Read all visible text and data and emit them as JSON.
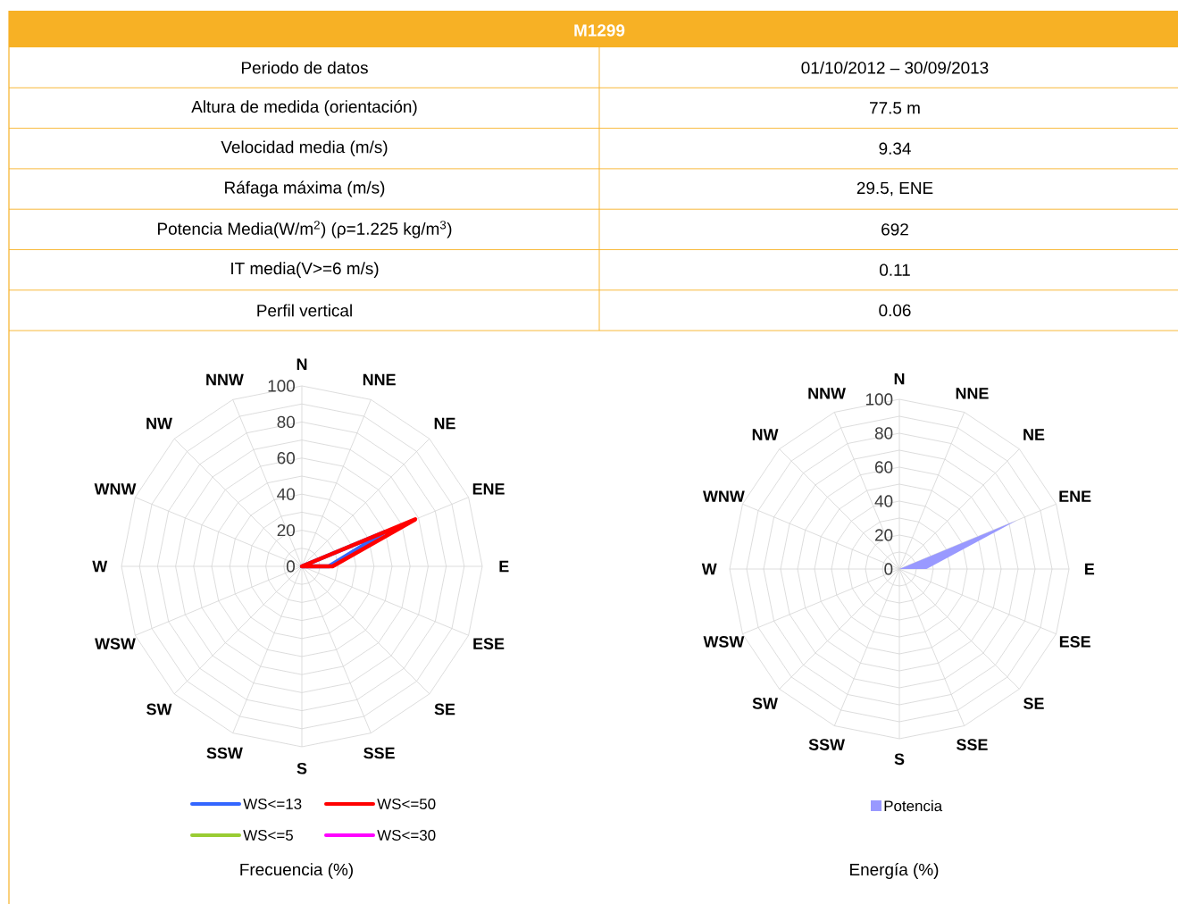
{
  "chart_data": [
    {
      "type": "other",
      "title": "M1299",
      "annotations": [
        "Periodo de datos",
        "01/10/2012 – 30/09/2013",
        "Altura de medida (orientación)",
        "77.5 m",
        "Velocidad media (m/s)",
        "9.34",
        "Ráfaga máxima (m/s)",
        "29.5, ENE",
        "Potencia Media(W/m$^{2}$) (ρ=1.225 kg/m$^{3}$)",
        "692",
        "IT media(V>=6 m/s)",
        "0.11",
        "Perfil vertical",
        "0.06"
      ]
    },
    {
      "type": "radar",
      "title": "Frecuencia (%)",
      "categories": [
        "N",
        "NNE",
        "NE",
        "ENE",
        "E",
        "ESE",
        "SE",
        "SSE",
        "S",
        "SSW",
        "SW",
        "WSW",
        "W",
        "WNW",
        "NW",
        "NNW"
      ],
      "series": [
        {
          "name": "WS<=13",
          "color": "#3366ff",
          "values": [
            0,
            0,
            0,
            50,
            15,
            0,
            0,
            0,
            0,
            0,
            0,
            0,
            0,
            0,
            0,
            0
          ]
        },
        {
          "name": "WS<=50",
          "color": "#ff0000",
          "values": [
            0,
            0,
            0,
            68,
            17,
            0,
            0,
            0,
            0,
            0,
            0,
            0,
            0,
            0,
            0,
            0
          ]
        },
        {
          "name": "WS<=5",
          "color": "#99cc33",
          "values": [
            null,
            null,
            null,
            null,
            null,
            null,
            null,
            null,
            null,
            null,
            null,
            null,
            null,
            null,
            null,
            null
          ]
        },
        {
          "name": "WS<=30",
          "color": "#ff00ff",
          "values": [
            null,
            null,
            null,
            null,
            null,
            null,
            null,
            null,
            null,
            null,
            null,
            null,
            null,
            null,
            null,
            null
          ]
        }
      ],
      "ylim": [
        0,
        100
      ],
      "yticks": [
        0,
        20,
        40,
        60,
        80,
        100
      ],
      "grid": true,
      "legend": "bottom"
    },
    {
      "type": "radar",
      "title": "Energía (%)",
      "categories": [
        "N",
        "NNE",
        "NE",
        "ENE",
        "E",
        "ESE",
        "SE",
        "SSE",
        "S",
        "SSW",
        "SW",
        "WSW",
        "W",
        "WNW",
        "NW",
        "NNW"
      ],
      "series": [
        {
          "name": "Potencia",
          "type": "area",
          "color": "#9999ff",
          "values": [
            0,
            0,
            0,
            75,
            16,
            0,
            0,
            0,
            0,
            0,
            0,
            0,
            0,
            0,
            0,
            0
          ]
        }
      ],
      "ylim": [
        0,
        100
      ],
      "yticks": [
        0,
        20,
        40,
        60,
        80,
        100
      ],
      "grid": true,
      "legend": "bottom"
    }
  ]
}
